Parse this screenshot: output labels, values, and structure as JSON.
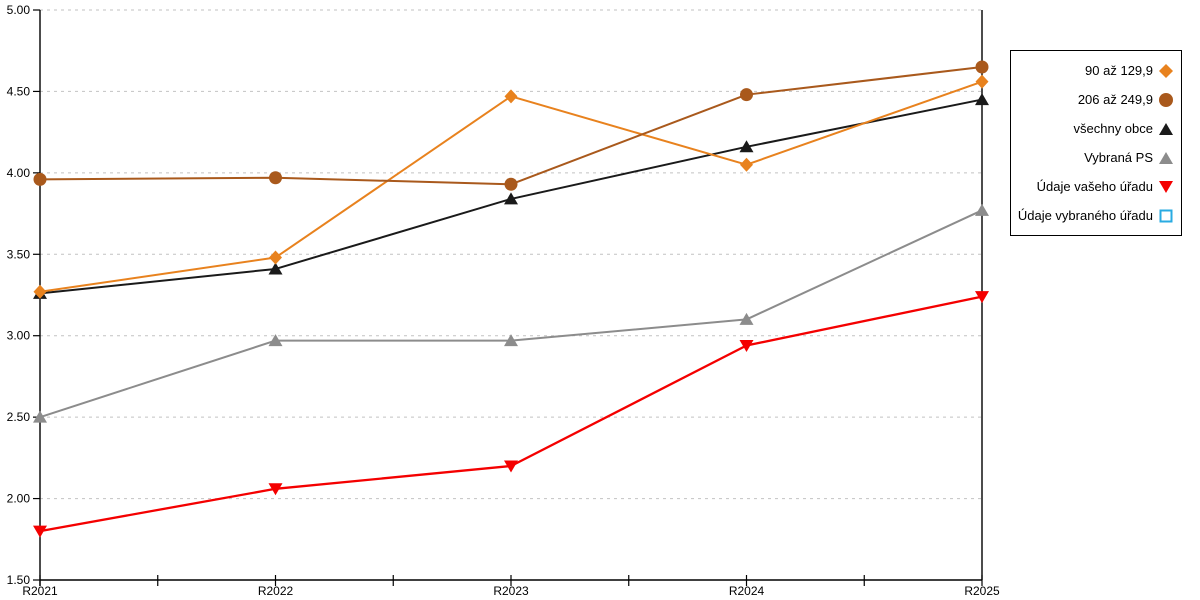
{
  "chart_data": {
    "type": "line",
    "title": "",
    "xlabel": "",
    "ylabel": "",
    "categories": [
      "R2021",
      "R2022",
      "R2023",
      "R2024",
      "R2025"
    ],
    "series": [
      {
        "name": "90 až 129,9",
        "marker": "diamond",
        "color": "#E8821E",
        "values": [
          3.27,
          3.48,
          4.47,
          4.05,
          4.56
        ]
      },
      {
        "name": "206 až 249,9",
        "marker": "circle",
        "color": "#A9591C",
        "values": [
          3.96,
          3.97,
          3.93,
          4.48,
          4.65
        ]
      },
      {
        "name": "všechny obce",
        "marker": "triangle-up",
        "color": "#1A1A1A",
        "values": [
          3.26,
          3.41,
          3.84,
          4.16,
          4.45
        ]
      },
      {
        "name": "Vybraná PS",
        "marker": "triangle-up",
        "color": "#8C8C8C",
        "values": [
          2.5,
          2.97,
          2.97,
          3.1,
          3.77
        ]
      },
      {
        "name": "Údaje vašeho úřadu",
        "marker": "triangle-down",
        "color": "#F40000",
        "values": [
          1.8,
          2.06,
          2.2,
          2.94,
          3.24
        ]
      },
      {
        "name": "Údaje vybraného úřadu",
        "marker": "square-open",
        "color": "#29ABE2",
        "values": []
      }
    ],
    "ylim": [
      1.5,
      5.0
    ],
    "y_ticks": [
      5.0,
      4.5,
      4.0,
      3.5,
      3.0,
      2.5,
      2.0,
      1.5
    ],
    "y_tick_labels": [
      "5.00",
      "4.50",
      "4.00",
      "3.50",
      "3.00",
      "2.50",
      "2.00",
      "1.50"
    ],
    "grid": "horizontal-dashed",
    "grid_color": "#C2C2C2",
    "axis_color": "#000000",
    "legend_position": "right",
    "draw_order": [
      3,
      4,
      2,
      0,
      1
    ]
  }
}
